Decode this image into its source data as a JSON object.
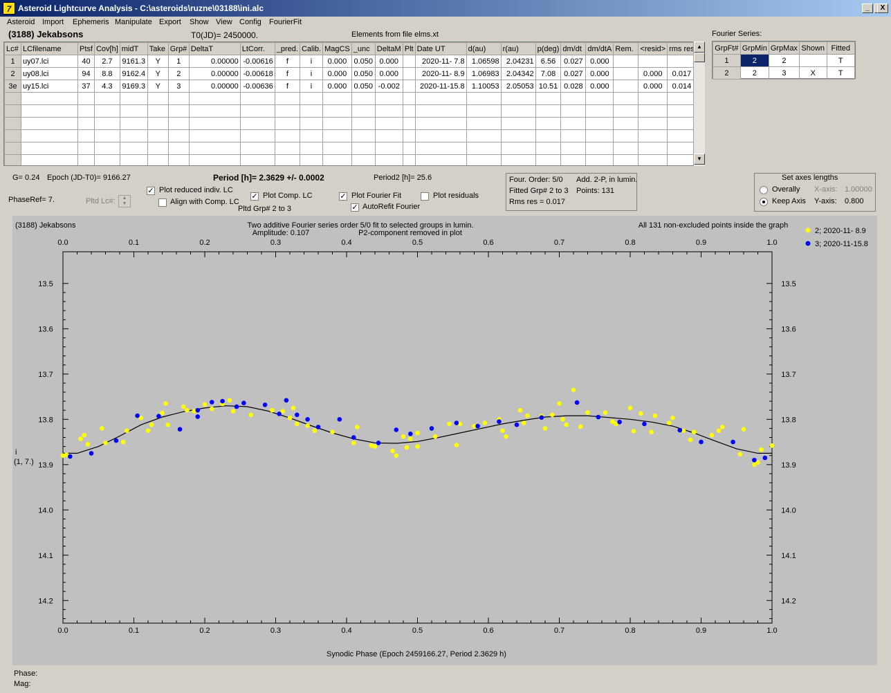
{
  "window": {
    "title": "Asteroid Lightcurve Analysis - C:\\asteroids\\ruzne\\03188\\ini.alc",
    "min": "_",
    "max": "□",
    "close": "X"
  },
  "menu": [
    "Asteroid",
    "Import",
    "Ephemeris",
    "Manipulate",
    "Export",
    "Show",
    "View",
    "Config",
    "FourierFit"
  ],
  "header": {
    "asteroid": "(3188) Jekabsons",
    "t0": "T0(JD)= 2450000.",
    "elements": "Elements from file elms.xt",
    "fourier_series": "Fourier Series:"
  },
  "lc_table": {
    "columns": [
      "Lc#",
      "LCfilename",
      "Ptsf",
      "Cov[h]",
      "midT",
      "Take",
      "Grp#",
      "DeltaT",
      "LtCorr.",
      "_pred.",
      "Calib.",
      "MagCS",
      "_unc",
      "DeltaM",
      "Plt",
      "Date UT",
      "d(au)",
      "r(au)",
      "p(deg)",
      "dm/dt",
      "dm/dtA",
      "Rem.",
      "<resid>",
      "rms res"
    ],
    "rows": [
      [
        "1",
        "uy07.lci",
        "40",
        "2.7",
        "9161.3",
        "Y",
        "1",
        "0.00000",
        "-0.00616",
        "f",
        "i",
        "0.000",
        "0.050",
        "0.000",
        "",
        "2020-11- 7.8",
        "1.06598",
        "2.04231",
        "6.56",
        "0.027",
        "0.000",
        "",
        "",
        ""
      ],
      [
        "2",
        "uy08.lci",
        "94",
        "8.8",
        "9162.4",
        "Y",
        "2",
        "0.00000",
        "-0.00618",
        "f",
        "i",
        "0.000",
        "0.050",
        "0.000",
        "",
        "2020-11- 8.9",
        "1.06983",
        "2.04342",
        "7.08",
        "0.027",
        "0.000",
        "",
        "0.000",
        "0.017"
      ],
      [
        "3e",
        "uy15.lci",
        "37",
        "4.3",
        "9169.3",
        "Y",
        "3",
        "0.00000",
        "-0.00636",
        "f",
        "i",
        "0.000",
        "0.050",
        "-0.002",
        "",
        "2020-11-15.8",
        "1.10053",
        "2.05053",
        "10.51",
        "0.028",
        "0.000",
        "",
        "0.000",
        "0.014"
      ]
    ],
    "empty_rows": 6
  },
  "fourier_table": {
    "columns": [
      "GrpFt#",
      "GrpMin",
      "GrpMax",
      "Shown",
      "Fitted"
    ],
    "rows": [
      [
        "1",
        "2",
        "2",
        "",
        "T"
      ],
      [
        "2",
        "2",
        "3",
        "X",
        "T"
      ]
    ]
  },
  "info": {
    "g": "G= 0.24",
    "epoch": "Epoch (JD-T0)= 9166.27",
    "period": "Period [h]= 2.3629 +/- 0.0002",
    "period2": "Period2 [h]= 25.6",
    "phaseref": "PhaseRef= 7.",
    "pltd_lc": "Pltd Lc#:",
    "pltd_grp": "Pltd Grp#  2  to   3"
  },
  "checkboxes": {
    "plot_reduced": {
      "label": "Plot reduced indiv. LC",
      "checked": true
    },
    "align_comp": {
      "label": "Align with Comp. LC",
      "checked": false
    },
    "plot_comp": {
      "label": "Plot Comp. LC",
      "checked": true
    },
    "plot_fourier": {
      "label": "Plot Fourier Fit",
      "checked": true
    },
    "autorefit": {
      "label": "AutoRefit Fourier",
      "checked": true
    },
    "plot_residuals": {
      "label": "Plot residuals",
      "checked": false
    }
  },
  "fourier_box": {
    "order": "Four. Order:  5/0",
    "add": "Add. 2-P, in lumin.",
    "fitted": "Fitted Grp# 2 to 3",
    "points": "Points: 131",
    "rms": "Rms res     = 0.017"
  },
  "axes_box": {
    "title": "Set axes lengths",
    "overally": "Overally",
    "keep_axis": "Keep Axis",
    "x_label": "X-axis:",
    "x_value": "1.00000",
    "y_label": "Y-axis:",
    "y_value": "0.800",
    "selected": "keep_axis"
  },
  "plot": {
    "name": "(3188) Jekabsons",
    "subtitle1": "Two additive Fourier series order 5/0 fit to selected groups in lumin.",
    "subtitle2": "Amplitude: 0.107",
    "subtitle3": "P2-component removed in plot",
    "note": "All 131 non-excluded points inside the graph",
    "ylabel1": "i",
    "ylabel2": "(1, 7.)",
    "xlabel": "Synodic Phase (Epoch 2459166.27, Period 2.3629 h)",
    "legend": [
      {
        "label": "2; 2020-11- 8.9",
        "color": "#ffff00"
      },
      {
        "label": "3; 2020-11-15.8",
        "color": "#0000ff"
      }
    ]
  },
  "status": {
    "phase": "Phase:",
    "mag": "Mag:"
  },
  "chart_data": {
    "type": "scatter",
    "xlim": [
      0,
      1
    ],
    "ylim": [
      14.25,
      13.43
    ],
    "xticks": [
      "0.0",
      "0.1",
      "0.2",
      "0.3",
      "0.4",
      "0.5",
      "0.6",
      "0.7",
      "0.8",
      "0.9",
      "1.0"
    ],
    "yticks": [
      "13.5",
      "13.6",
      "13.7",
      "13.8",
      "13.9",
      "14.0",
      "14.1",
      "14.2"
    ],
    "grid": false,
    "series": [
      {
        "name": "2; 2020-11- 8.9",
        "color": "#ffff00",
        "points": [
          [
            0.0,
            13.88
          ],
          [
            0.005,
            13.878
          ],
          [
            0.025,
            13.843
          ],
          [
            0.03,
            13.835
          ],
          [
            0.035,
            13.855
          ],
          [
            0.055,
            13.82
          ],
          [
            0.06,
            13.852
          ],
          [
            0.085,
            13.85
          ],
          [
            0.09,
            13.825
          ],
          [
            0.11,
            13.797
          ],
          [
            0.12,
            13.825
          ],
          [
            0.125,
            13.812
          ],
          [
            0.14,
            13.786
          ],
          [
            0.145,
            13.765
          ],
          [
            0.148,
            13.812
          ],
          [
            0.17,
            13.772
          ],
          [
            0.175,
            13.78
          ],
          [
            0.185,
            13.782
          ],
          [
            0.2,
            13.767
          ],
          [
            0.21,
            13.777
          ],
          [
            0.225,
            13.766
          ],
          [
            0.235,
            13.758
          ],
          [
            0.24,
            13.782
          ],
          [
            0.265,
            13.79
          ],
          [
            0.295,
            13.78
          ],
          [
            0.31,
            13.782
          ],
          [
            0.32,
            13.797
          ],
          [
            0.325,
            13.775
          ],
          [
            0.33,
            13.81
          ],
          [
            0.345,
            13.814
          ],
          [
            0.355,
            13.825
          ],
          [
            0.38,
            13.828
          ],
          [
            0.41,
            13.852
          ],
          [
            0.415,
            13.817
          ],
          [
            0.435,
            13.858
          ],
          [
            0.44,
            13.86
          ],
          [
            0.465,
            13.87
          ],
          [
            0.47,
            13.88
          ],
          [
            0.48,
            13.838
          ],
          [
            0.485,
            13.862
          ],
          [
            0.49,
            13.843
          ],
          [
            0.5,
            13.86
          ],
          [
            0.5,
            13.83
          ],
          [
            0.525,
            13.838
          ],
          [
            0.545,
            13.81
          ],
          [
            0.555,
            13.857
          ],
          [
            0.56,
            13.81
          ],
          [
            0.58,
            13.815
          ],
          [
            0.595,
            13.808
          ],
          [
            0.615,
            13.8
          ],
          [
            0.62,
            13.825
          ],
          [
            0.625,
            13.838
          ],
          [
            0.645,
            13.78
          ],
          [
            0.65,
            13.808
          ],
          [
            0.655,
            13.792
          ],
          [
            0.675,
            13.793
          ],
          [
            0.68,
            13.82
          ],
          [
            0.69,
            13.79
          ],
          [
            0.7,
            13.765
          ],
          [
            0.705,
            13.8
          ],
          [
            0.71,
            13.812
          ],
          [
            0.72,
            13.735
          ],
          [
            0.73,
            13.816
          ],
          [
            0.74,
            13.785
          ],
          [
            0.765,
            13.785
          ],
          [
            0.775,
            13.805
          ],
          [
            0.78,
            13.81
          ],
          [
            0.8,
            13.775
          ],
          [
            0.805,
            13.826
          ],
          [
            0.815,
            13.787
          ],
          [
            0.83,
            13.828
          ],
          [
            0.835,
            13.792
          ],
          [
            0.855,
            13.808
          ],
          [
            0.86,
            13.797
          ],
          [
            0.875,
            13.825
          ],
          [
            0.885,
            13.845
          ],
          [
            0.89,
            13.828
          ],
          [
            0.915,
            13.835
          ],
          [
            0.925,
            13.825
          ],
          [
            0.93,
            13.817
          ],
          [
            0.955,
            13.877
          ],
          [
            0.96,
            13.822
          ],
          [
            0.975,
            13.9
          ],
          [
            0.98,
            13.895
          ],
          [
            0.985,
            13.867
          ],
          [
            1.0,
            13.858
          ]
        ]
      },
      {
        "name": "3; 2020-11-15.8",
        "color": "#0000ff",
        "points": [
          [
            0.01,
            13.882
          ],
          [
            0.04,
            13.875
          ],
          [
            0.075,
            13.847
          ],
          [
            0.105,
            13.792
          ],
          [
            0.135,
            13.793
          ],
          [
            0.165,
            13.822
          ],
          [
            0.19,
            13.794
          ],
          [
            0.19,
            13.78
          ],
          [
            0.21,
            13.762
          ],
          [
            0.225,
            13.76
          ],
          [
            0.245,
            13.772
          ],
          [
            0.255,
            13.764
          ],
          [
            0.285,
            13.768
          ],
          [
            0.305,
            13.788
          ],
          [
            0.315,
            13.758
          ],
          [
            0.33,
            13.79
          ],
          [
            0.345,
            13.8
          ],
          [
            0.36,
            13.817
          ],
          [
            0.39,
            13.8
          ],
          [
            0.41,
            13.84
          ],
          [
            0.445,
            13.852
          ],
          [
            0.47,
            13.823
          ],
          [
            0.49,
            13.832
          ],
          [
            0.52,
            13.82
          ],
          [
            0.555,
            13.808
          ],
          [
            0.585,
            13.815
          ],
          [
            0.615,
            13.805
          ],
          [
            0.64,
            13.812
          ],
          [
            0.675,
            13.796
          ],
          [
            0.725,
            13.763
          ],
          [
            0.755,
            13.795
          ],
          [
            0.785,
            13.806
          ],
          [
            0.82,
            13.81
          ],
          [
            0.87,
            13.824
          ],
          [
            0.9,
            13.85
          ],
          [
            0.945,
            13.85
          ],
          [
            0.975,
            13.89
          ],
          [
            0.99,
            13.885
          ]
        ]
      }
    ],
    "fit_curve": [
      [
        0.0,
        13.875
      ],
      [
        0.02,
        13.875
      ],
      [
        0.05,
        13.86
      ],
      [
        0.08,
        13.837
      ],
      [
        0.11,
        13.812
      ],
      [
        0.14,
        13.795
      ],
      [
        0.17,
        13.783
      ],
      [
        0.2,
        13.775
      ],
      [
        0.23,
        13.77
      ],
      [
        0.26,
        13.772
      ],
      [
        0.29,
        13.782
      ],
      [
        0.32,
        13.797
      ],
      [
        0.35,
        13.814
      ],
      [
        0.38,
        13.83
      ],
      [
        0.41,
        13.843
      ],
      [
        0.44,
        13.852
      ],
      [
        0.47,
        13.853
      ],
      [
        0.5,
        13.849
      ],
      [
        0.53,
        13.84
      ],
      [
        0.56,
        13.83
      ],
      [
        0.59,
        13.82
      ],
      [
        0.62,
        13.81
      ],
      [
        0.65,
        13.802
      ],
      [
        0.68,
        13.795
      ],
      [
        0.71,
        13.792
      ],
      [
        0.74,
        13.792
      ],
      [
        0.77,
        13.796
      ],
      [
        0.8,
        13.8
      ],
      [
        0.83,
        13.806
      ],
      [
        0.86,
        13.815
      ],
      [
        0.89,
        13.83
      ],
      [
        0.92,
        13.848
      ],
      [
        0.95,
        13.865
      ],
      [
        0.98,
        13.875
      ],
      [
        1.0,
        13.875
      ]
    ]
  }
}
